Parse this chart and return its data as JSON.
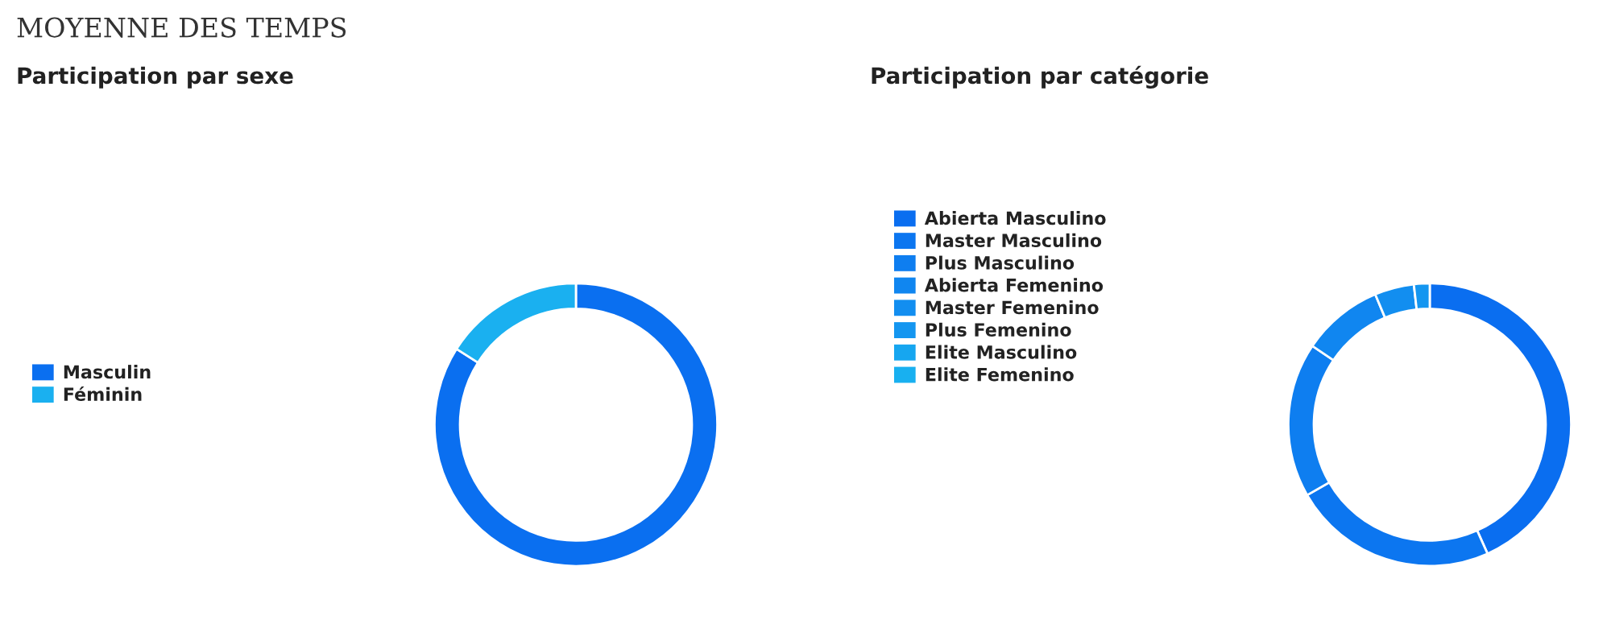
{
  "chart_data": [
    {
      "type": "donut",
      "title": "Participation par sexe",
      "annotations": [
        "MOYENNE DES TEMPS"
      ],
      "legend": "left",
      "categories": [
        "Masculin",
        "Féminin"
      ],
      "values": [
        84,
        16
      ],
      "colors": [
        "#0a6ff0",
        "#1ab0f0"
      ]
    },
    {
      "type": "donut",
      "title": "Participation par catégorie",
      "legend": "left",
      "categories": [
        "Abierta Masculino",
        "Master Masculino",
        "Plus Masculino",
        "Abierta Femenino",
        "Master Femenino",
        "Plus Femenino",
        "Elite Masculino",
        "Elite Femenino"
      ],
      "values": [
        43.3,
        23.4,
        17.7,
        9.3,
        4.5,
        1.8,
        0,
        0
      ],
      "colors": [
        "#0a6ef0",
        "#0c76f0",
        "#0e7ef0",
        "#1086f0",
        "#128ef0",
        "#1496f0",
        "#16a6f0",
        "#18b0f0"
      ]
    }
  ]
}
